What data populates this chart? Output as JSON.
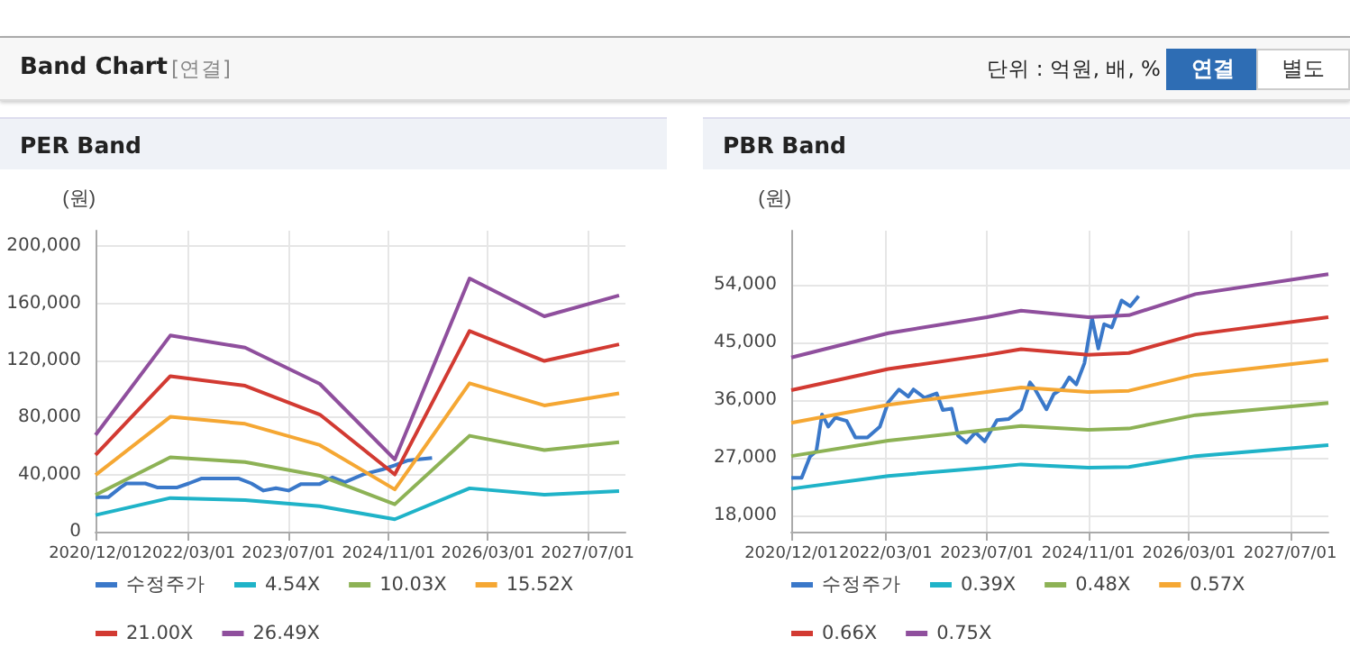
{
  "chart_data": [
    {
      "type": "other",
      "title": "Band Chart",
      "annotations": [
        "[연결]",
        "단위 : 억원, 배, %",
        "연결",
        "별도"
      ]
    },
    {
      "type": "line",
      "title": "PER Band",
      "ylabel": "(원)",
      "grid": true,
      "legend": "bottom",
      "marker": "none",
      "line_style": "solid",
      "xlim": [
        "2020-12-01",
        "2028-01-01"
      ],
      "xticks": [
        {
          "value": "2020-12-01",
          "label": "2020/12/01"
        },
        {
          "value": "2022-03-01",
          "label": "2022/03/01"
        },
        {
          "value": "2023-07-01",
          "label": "2023/07/01"
        },
        {
          "value": "2024-11-01",
          "label": "2024/11/01"
        },
        {
          "value": "2026-03-01",
          "label": "2026/03/01"
        },
        {
          "value": "2027-07-01",
          "label": "2027/07/01"
        }
      ],
      "ylim": [
        0,
        211000
      ],
      "yticks": [
        {
          "value": 0,
          "label": "0"
        },
        {
          "value": 40000,
          "label": "40,000"
        },
        {
          "value": 80000,
          "label": "80,000"
        },
        {
          "value": 120000,
          "label": "120,000"
        },
        {
          "value": 160000,
          "label": "160,000"
        },
        {
          "value": 200000,
          "label": "200,000"
        }
      ],
      "series": [
        {
          "name": "수정주가",
          "color": "#3a78c9",
          "x": [
            "2020-12-01",
            "2021-02-01",
            "2021-04-01",
            "2021-05-01",
            "2021-08-01",
            "2021-10-01",
            "2022-01-01",
            "2022-03-01",
            "2022-05-01",
            "2022-11-01",
            "2023-01-01",
            "2023-03-01",
            "2023-05-01",
            "2023-07-01",
            "2023-09-01",
            "2023-12-01",
            "2024-02-01",
            "2024-04-01",
            "2024-07-01",
            "2024-10-01",
            "2024-12-01",
            "2025-02-01",
            "2025-06-01"
          ],
          "values": [
            24100,
            24100,
            30900,
            33800,
            33800,
            30900,
            30900,
            33800,
            37200,
            37200,
            33800,
            28800,
            30500,
            28800,
            33400,
            33400,
            38000,
            34700,
            40200,
            43600,
            46500,
            49900,
            51600
          ]
        },
        {
          "name": "4.54X",
          "color": "#1fb3c8",
          "x": [
            "2020-12-01",
            "2021-12-01",
            "2022-12-01",
            "2023-12-01",
            "2024-12-01",
            "2025-12-01",
            "2026-12-01",
            "2027-12-01"
          ],
          "values": [
            11600,
            23600,
            22100,
            17800,
            8700,
            30400,
            25900,
            28400
          ]
        },
        {
          "name": "10.03X",
          "color": "#8db255",
          "x": [
            "2020-12-01",
            "2021-12-01",
            "2022-12-01",
            "2023-12-01",
            "2024-12-01",
            "2025-12-01",
            "2026-12-01",
            "2027-12-01"
          ],
          "values": [
            25700,
            52100,
            48800,
            39200,
            19200,
            67200,
            57200,
            62700
          ]
        },
        {
          "name": "15.52X",
          "color": "#f5a733",
          "x": [
            "2020-12-01",
            "2021-12-01",
            "2022-12-01",
            "2023-12-01",
            "2024-12-01",
            "2025-12-01",
            "2026-12-01",
            "2027-12-01"
          ],
          "values": [
            39700,
            80500,
            75600,
            60700,
            29600,
            104000,
            88500,
            97000
          ]
        },
        {
          "name": "21.00X",
          "color": "#d23a32",
          "x": [
            "2020-12-01",
            "2021-12-01",
            "2022-12-01",
            "2023-12-01",
            "2024-12-01",
            "2025-12-01",
            "2026-12-01",
            "2027-12-01"
          ],
          "values": [
            53800,
            109000,
            102300,
            82100,
            40100,
            140700,
            119700,
            131300
          ]
        },
        {
          "name": "26.49X",
          "color": "#8f4f9d",
          "x": [
            "2020-12-01",
            "2021-12-01",
            "2022-12-01",
            "2023-12-01",
            "2024-12-01",
            "2025-12-01",
            "2026-12-01",
            "2027-12-01"
          ],
          "values": [
            67800,
            137500,
            129000,
            103600,
            50600,
            177500,
            151000,
            165600
          ]
        }
      ]
    },
    {
      "type": "line",
      "title": "PBR Band",
      "ylabel": "(원)",
      "grid": true,
      "legend": "bottom",
      "marker": "none",
      "line_style": "solid",
      "xlim": [
        "2020-12-01",
        "2028-01-01"
      ],
      "xticks": [
        {
          "value": "2020-12-01",
          "label": "2020/12/01"
        },
        {
          "value": "2022-03-01",
          "label": "2022/03/01"
        },
        {
          "value": "2023-07-01",
          "label": "2023/07/01"
        },
        {
          "value": "2024-11-01",
          "label": "2024/11/01"
        },
        {
          "value": "2026-03-01",
          "label": "2026/03/01"
        },
        {
          "value": "2027-07-01",
          "label": "2027/07/01"
        }
      ],
      "ylim": [
        15500,
        62500
      ],
      "yticks": [
        {
          "value": 18000,
          "label": "18,000"
        },
        {
          "value": 27000,
          "label": "27,000"
        },
        {
          "value": 36000,
          "label": "36,000"
        },
        {
          "value": 45000,
          "label": "45,000"
        },
        {
          "value": 54000,
          "label": "54,000"
        }
      ],
      "series": [
        {
          "name": "수정주가",
          "color": "#3a78c9",
          "x": [
            "2020-12-01",
            "2021-01-20",
            "2021-03-01",
            "2021-04-01",
            "2021-04-28",
            "2021-05-28",
            "2021-07-01",
            "2021-08-25",
            "2021-10-06",
            "2021-12-03",
            "2022-02-01",
            "2022-03-13",
            "2022-05-04",
            "2022-06-18",
            "2022-07-13",
            "2022-09-04",
            "2022-11-01",
            "2022-12-01",
            "2023-01-13",
            "2023-02-12",
            "2023-03-25",
            "2023-05-07",
            "2023-06-21",
            "2023-08-19",
            "2023-10-15",
            "2023-12-13",
            "2024-01-25",
            "2024-02-15",
            "2024-04-13",
            "2024-05-19",
            "2024-07-01",
            "2024-08-01",
            "2024-09-04",
            "2024-10-13",
            "2024-11-19",
            "2024-12-19",
            "2025-01-16",
            "2025-02-22",
            "2025-04-10",
            "2025-05-22",
            "2025-07-01"
          ],
          "values": [
            23900,
            23900,
            27200,
            28100,
            33800,
            31900,
            33300,
            32800,
            30200,
            30200,
            31900,
            35700,
            37700,
            36600,
            37700,
            36400,
            37100,
            34500,
            34700,
            30500,
            29400,
            31000,
            29600,
            32900,
            33100,
            34600,
            38800,
            37900,
            34600,
            37000,
            37900,
            39600,
            38500,
            41800,
            48800,
            44100,
            47900,
            47400,
            51600,
            50700,
            52300
          ]
        },
        {
          "name": "0.39X",
          "color": "#1fb3c8",
          "x": [
            "2020-12-01",
            "2022-03-13",
            "2023-07-01",
            "2023-12-13",
            "2024-11-01",
            "2025-05-15",
            "2026-04-01",
            "2028-01-01"
          ],
          "values": [
            22200,
            24200,
            25500,
            26000,
            25500,
            25600,
            27300,
            29000
          ]
        },
        {
          "name": "0.48X",
          "color": "#8db255",
          "x": [
            "2020-12-01",
            "2022-03-13",
            "2023-07-01",
            "2023-12-13",
            "2024-11-01",
            "2025-05-15",
            "2026-04-01",
            "2028-01-01"
          ],
          "values": [
            27300,
            29700,
            31400,
            32000,
            31400,
            31600,
            33700,
            35600
          ]
        },
        {
          "name": "0.57X",
          "color": "#f5a733",
          "x": [
            "2020-12-01",
            "2022-03-13",
            "2023-07-01",
            "2023-12-13",
            "2024-11-01",
            "2025-05-15",
            "2026-04-01",
            "2028-01-01"
          ],
          "values": [
            32500,
            35300,
            37300,
            38000,
            37300,
            37500,
            40000,
            42300
          ]
        },
        {
          "name": "0.66X",
          "color": "#d23a32",
          "x": [
            "2020-12-01",
            "2022-03-13",
            "2023-07-01",
            "2023-12-13",
            "2024-11-01",
            "2025-05-15",
            "2026-04-01",
            "2028-01-01"
          ],
          "values": [
            37600,
            40900,
            43100,
            44000,
            43100,
            43400,
            46300,
            49000
          ]
        },
        {
          "name": "0.75X",
          "color": "#8f4f9d",
          "x": [
            "2020-12-01",
            "2022-03-13",
            "2023-07-01",
            "2023-12-13",
            "2024-11-01",
            "2025-05-15",
            "2026-04-01",
            "2028-01-01"
          ],
          "values": [
            42700,
            46500,
            49000,
            50000,
            49000,
            49300,
            52600,
            55700
          ]
        }
      ]
    }
  ]
}
